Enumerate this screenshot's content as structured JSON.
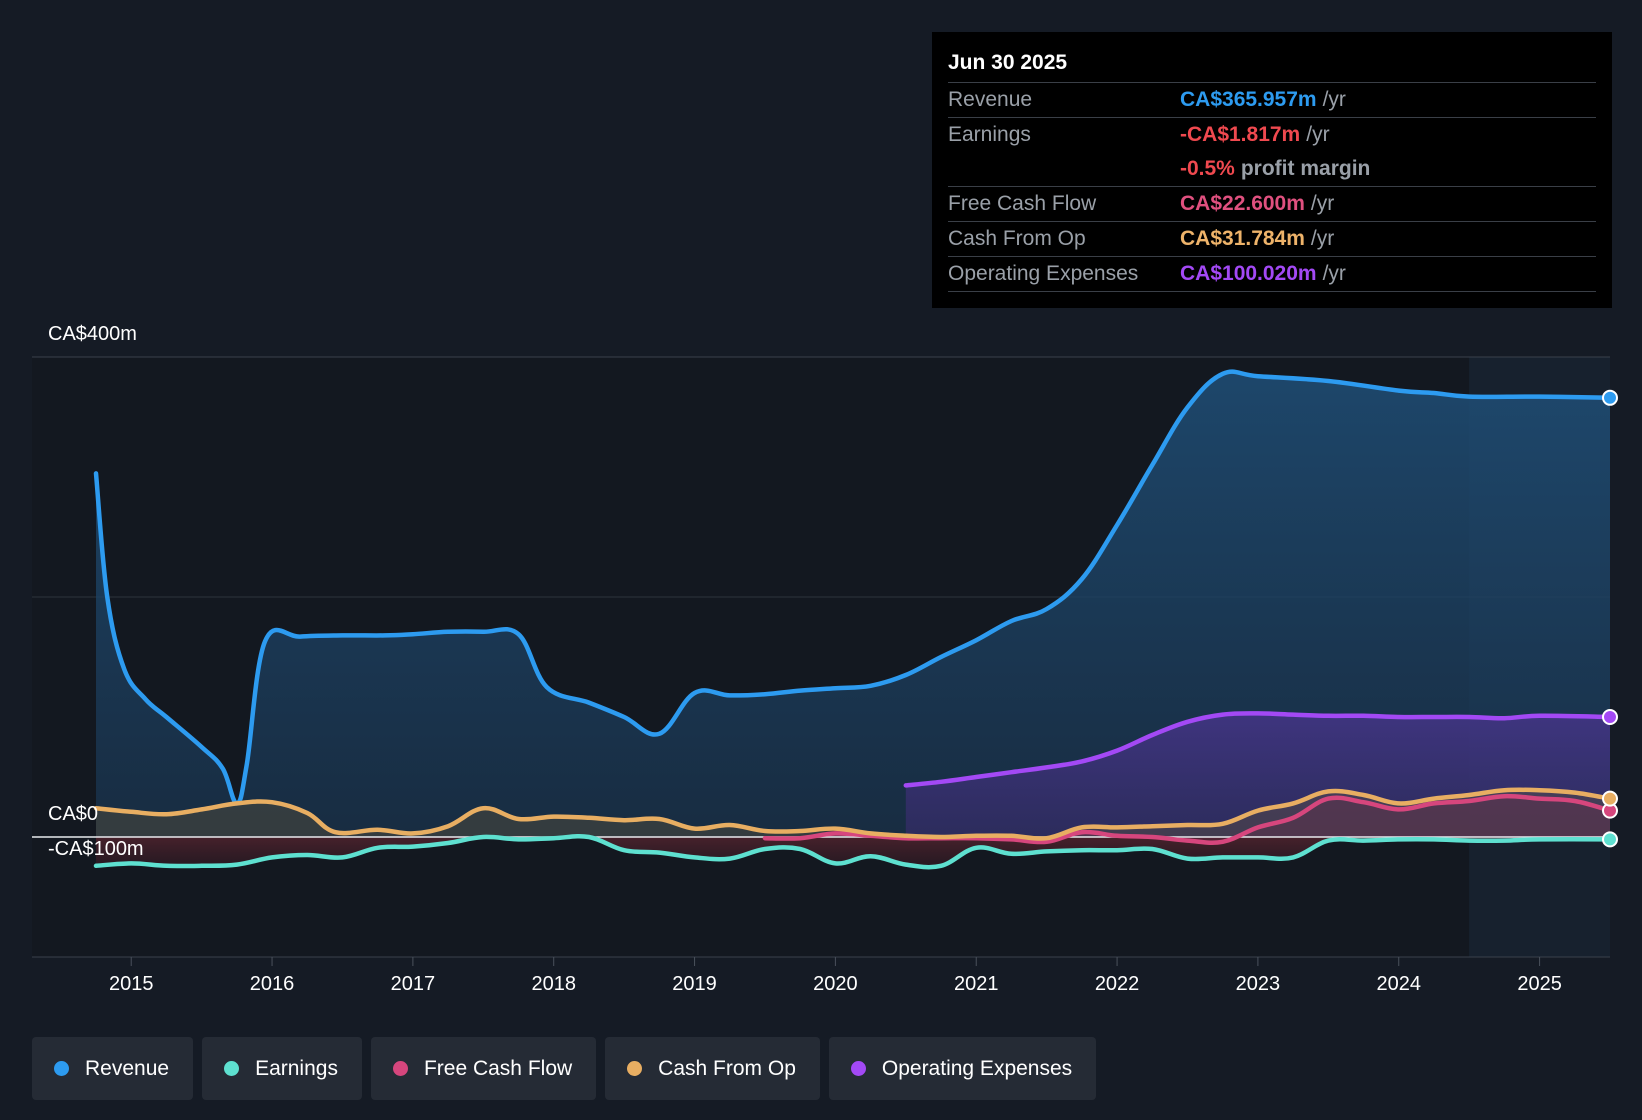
{
  "tooltip": {
    "date": "Jun 30 2025",
    "rows": [
      {
        "label": "Revenue",
        "value": "CA$365.957m",
        "unit": "/yr",
        "color": "#2d9bf0"
      },
      {
        "label": "Earnings",
        "value": "-CA$1.817m",
        "unit": "/yr",
        "color": "#f0494f"
      },
      {
        "label": "",
        "value": "-0.5%",
        "unit": "profit margin",
        "color": "#f0494f"
      },
      {
        "label": "Free Cash Flow",
        "value": "CA$22.600m",
        "unit": "/yr",
        "color": "#e0507f"
      },
      {
        "label": "Cash From Op",
        "value": "CA$31.784m",
        "unit": "/yr",
        "color": "#eeb36a"
      },
      {
        "label": "Operating Expenses",
        "value": "CA$100.020m",
        "unit": "/yr",
        "color": "#a349f5"
      }
    ]
  },
  "legend": [
    {
      "label": "Revenue",
      "color": "#2d9bf0"
    },
    {
      "label": "Earnings",
      "color": "#5ee0d0"
    },
    {
      "label": "Free Cash Flow",
      "color": "#d6467d"
    },
    {
      "label": "Cash From Op",
      "color": "#e8ae62"
    },
    {
      "label": "Operating Expenses",
      "color": "#a349f5"
    }
  ],
  "chart_data": {
    "type": "area",
    "title": "",
    "y_axis_labels": [
      "CA$400m",
      "CA$0",
      "-CA$100m"
    ],
    "ylim": [
      -100,
      400
    ],
    "xlim": [
      2014.75,
      2025.5
    ],
    "x_ticks": [
      2015,
      2016,
      2017,
      2018,
      2019,
      2020,
      2021,
      2022,
      2023,
      2024,
      2025
    ],
    "forecast_shade_from": 2024.5,
    "series": [
      {
        "name": "Revenue",
        "color": "#2d9bf0",
        "points": [
          [
            2014.75,
            303
          ],
          [
            2014.83,
            200
          ],
          [
            2014.95,
            140
          ],
          [
            2015.1,
            115
          ],
          [
            2015.25,
            100
          ],
          [
            2015.5,
            75
          ],
          [
            2015.65,
            57
          ],
          [
            2015.75,
            28
          ],
          [
            2015.82,
            60
          ],
          [
            2015.95,
            163
          ],
          [
            2016.2,
            167
          ],
          [
            2016.5,
            168
          ],
          [
            2016.8,
            168
          ],
          [
            2017.0,
            169
          ],
          [
            2017.25,
            171
          ],
          [
            2017.5,
            171
          ],
          [
            2017.75,
            169
          ],
          [
            2017.95,
            125
          ],
          [
            2018.25,
            112
          ],
          [
            2018.5,
            100
          ],
          [
            2018.75,
            86
          ],
          [
            2019.0,
            120
          ],
          [
            2019.25,
            118
          ],
          [
            2019.5,
            119
          ],
          [
            2019.75,
            122
          ],
          [
            2020.0,
            124
          ],
          [
            2020.25,
            126
          ],
          [
            2020.5,
            135
          ],
          [
            2020.75,
            150
          ],
          [
            2021.0,
            164
          ],
          [
            2021.25,
            180
          ],
          [
            2021.5,
            190
          ],
          [
            2021.75,
            215
          ],
          [
            2022.0,
            260
          ],
          [
            2022.25,
            310
          ],
          [
            2022.5,
            358
          ],
          [
            2022.75,
            386
          ],
          [
            2023.0,
            384
          ],
          [
            2023.5,
            380
          ],
          [
            2024.0,
            372
          ],
          [
            2024.25,
            370
          ],
          [
            2024.5,
            367
          ],
          [
            2025.0,
            367
          ],
          [
            2025.5,
            366
          ]
        ]
      },
      {
        "name": "Operating Expenses",
        "color": "#a349f5",
        "points": [
          [
            2020.5,
            43
          ],
          [
            2020.75,
            46
          ],
          [
            2021.0,
            50
          ],
          [
            2021.25,
            54
          ],
          [
            2021.5,
            58
          ],
          [
            2021.75,
            63
          ],
          [
            2022.0,
            72
          ],
          [
            2022.25,
            85
          ],
          [
            2022.5,
            96
          ],
          [
            2022.75,
            102
          ],
          [
            2023.0,
            103
          ],
          [
            2023.25,
            102
          ],
          [
            2023.5,
            101
          ],
          [
            2023.75,
            101
          ],
          [
            2024.0,
            100
          ],
          [
            2024.25,
            100
          ],
          [
            2024.5,
            100
          ],
          [
            2024.75,
            99
          ],
          [
            2025.0,
            101
          ],
          [
            2025.5,
            100
          ]
        ]
      },
      {
        "name": "Cash From Op",
        "color": "#e8ae62",
        "points": [
          [
            2014.75,
            24
          ],
          [
            2015.0,
            21
          ],
          [
            2015.25,
            19
          ],
          [
            2015.5,
            23
          ],
          [
            2015.75,
            28
          ],
          [
            2016.0,
            29
          ],
          [
            2016.25,
            20
          ],
          [
            2016.45,
            4
          ],
          [
            2016.75,
            6
          ],
          [
            2017.0,
            3
          ],
          [
            2017.25,
            9
          ],
          [
            2017.5,
            24
          ],
          [
            2017.75,
            15
          ],
          [
            2018.0,
            17
          ],
          [
            2018.25,
            16
          ],
          [
            2018.5,
            14
          ],
          [
            2018.75,
            15
          ],
          [
            2019.0,
            7
          ],
          [
            2019.25,
            10
          ],
          [
            2019.5,
            5
          ],
          [
            2019.75,
            5
          ],
          [
            2020.0,
            7
          ],
          [
            2020.25,
            3
          ],
          [
            2020.5,
            1
          ],
          [
            2020.75,
            0
          ],
          [
            2021.0,
            1
          ],
          [
            2021.25,
            1
          ],
          [
            2021.5,
            -1
          ],
          [
            2021.75,
            8
          ],
          [
            2022.0,
            8
          ],
          [
            2022.25,
            9
          ],
          [
            2022.5,
            10
          ],
          [
            2022.75,
            11
          ],
          [
            2023.0,
            22
          ],
          [
            2023.25,
            28
          ],
          [
            2023.5,
            38
          ],
          [
            2023.75,
            35
          ],
          [
            2024.0,
            28
          ],
          [
            2024.25,
            32
          ],
          [
            2024.5,
            35
          ],
          [
            2024.75,
            39
          ],
          [
            2025.0,
            39
          ],
          [
            2025.25,
            37
          ],
          [
            2025.5,
            32
          ]
        ]
      },
      {
        "name": "Free Cash Flow",
        "color": "#d6467d",
        "points": [
          [
            2019.5,
            -1
          ],
          [
            2019.75,
            -1
          ],
          [
            2020.0,
            3
          ],
          [
            2020.25,
            1
          ],
          [
            2020.5,
            -1
          ],
          [
            2020.75,
            -1
          ],
          [
            2021.0,
            -1
          ],
          [
            2021.25,
            -2
          ],
          [
            2021.5,
            -4
          ],
          [
            2021.75,
            4
          ],
          [
            2022.0,
            1
          ],
          [
            2022.25,
            0
          ],
          [
            2022.5,
            -3
          ],
          [
            2022.75,
            -4
          ],
          [
            2023.0,
            8
          ],
          [
            2023.25,
            16
          ],
          [
            2023.5,
            32
          ],
          [
            2023.75,
            29
          ],
          [
            2024.0,
            23
          ],
          [
            2024.25,
            28
          ],
          [
            2024.5,
            30
          ],
          [
            2024.75,
            34
          ],
          [
            2025.0,
            32
          ],
          [
            2025.25,
            30
          ],
          [
            2025.5,
            22
          ]
        ]
      },
      {
        "name": "Earnings",
        "color": "#5ee0d0",
        "points": [
          [
            2014.75,
            -24
          ],
          [
            2015.0,
            -22
          ],
          [
            2015.25,
            -24
          ],
          [
            2015.5,
            -24
          ],
          [
            2015.75,
            -23
          ],
          [
            2016.0,
            -17
          ],
          [
            2016.25,
            -15
          ],
          [
            2016.5,
            -17
          ],
          [
            2016.75,
            -9
          ],
          [
            2017.0,
            -8
          ],
          [
            2017.25,
            -5
          ],
          [
            2017.5,
            0
          ],
          [
            2017.75,
            -2
          ],
          [
            2018.0,
            -1
          ],
          [
            2018.25,
            0
          ],
          [
            2018.5,
            -11
          ],
          [
            2018.75,
            -13
          ],
          [
            2019.0,
            -17
          ],
          [
            2019.25,
            -18
          ],
          [
            2019.5,
            -10
          ],
          [
            2019.75,
            -10
          ],
          [
            2020.0,
            -22
          ],
          [
            2020.25,
            -16
          ],
          [
            2020.5,
            -23
          ],
          [
            2020.75,
            -24
          ],
          [
            2021.0,
            -9
          ],
          [
            2021.25,
            -14
          ],
          [
            2021.5,
            -12
          ],
          [
            2021.75,
            -11
          ],
          [
            2022.0,
            -11
          ],
          [
            2022.25,
            -10
          ],
          [
            2022.5,
            -18
          ],
          [
            2022.75,
            -17
          ],
          [
            2023.0,
            -17
          ],
          [
            2023.25,
            -17
          ],
          [
            2023.5,
            -3
          ],
          [
            2023.75,
            -3
          ],
          [
            2024.0,
            -2
          ],
          [
            2024.25,
            -2
          ],
          [
            2024.5,
            -3
          ],
          [
            2024.75,
            -3
          ],
          [
            2025.0,
            -2
          ],
          [
            2025.5,
            -2
          ]
        ]
      }
    ]
  }
}
